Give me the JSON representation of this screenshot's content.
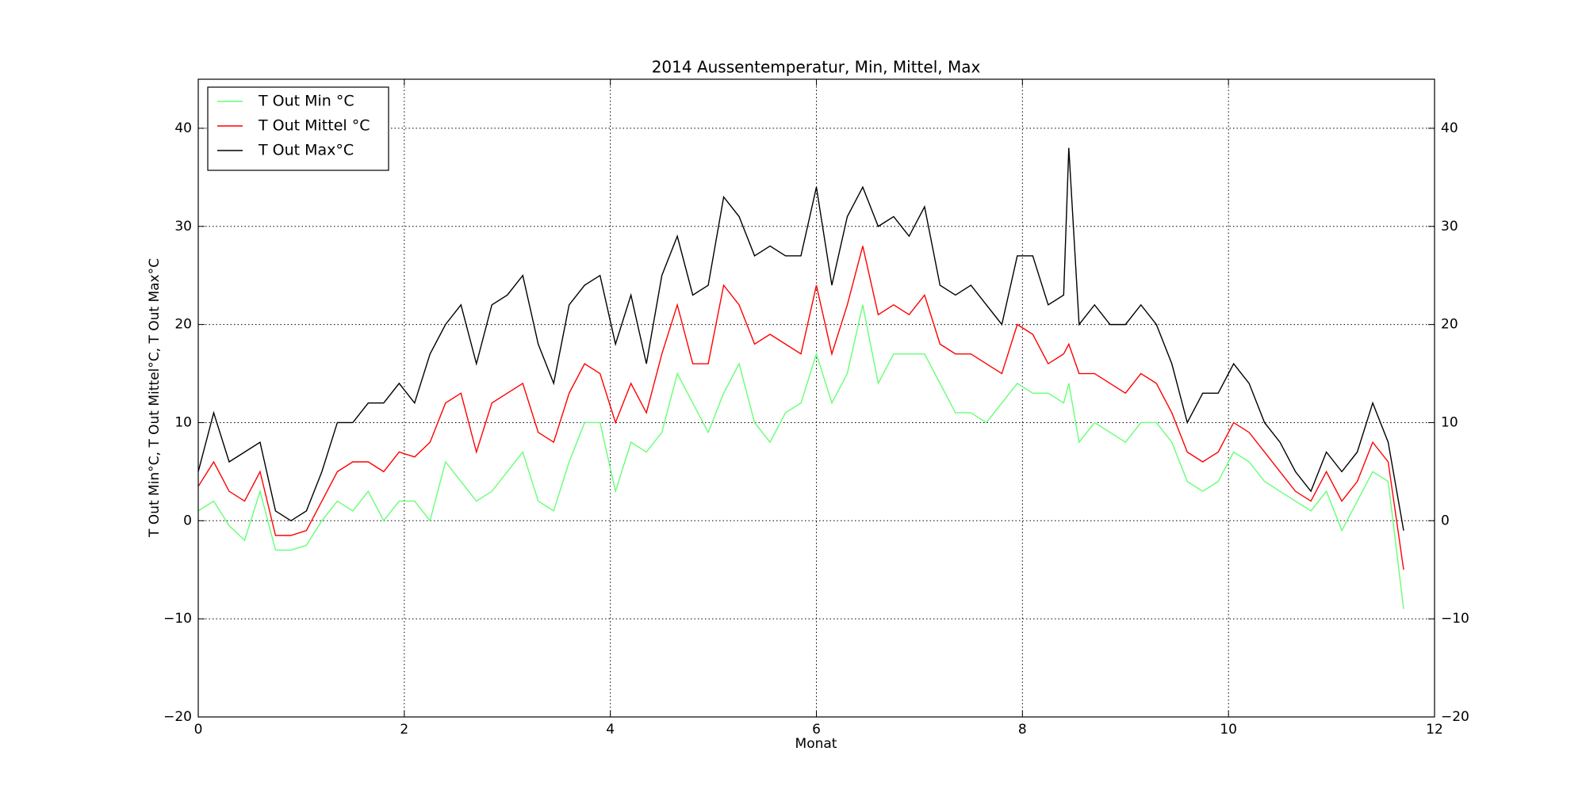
{
  "chart_data": {
    "type": "line",
    "title": "2014 Aussentemperatur, Min, Mittel, Max",
    "xlabel": "Monat",
    "ylabel": "T Out Min°C, T Out Mittel°C, T Out Max°C",
    "x": [
      0,
      0.15,
      0.3,
      0.45,
      0.6,
      0.75,
      0.9,
      1.05,
      1.2,
      1.35,
      1.5,
      1.65,
      1.8,
      1.95,
      2.1,
      2.25,
      2.4,
      2.55,
      2.7,
      2.85,
      3.0,
      3.15,
      3.3,
      3.45,
      3.6,
      3.75,
      3.9,
      4.05,
      4.2,
      4.35,
      4.5,
      4.65,
      4.8,
      4.95,
      5.1,
      5.25,
      5.4,
      5.55,
      5.7,
      5.85,
      6.0,
      6.15,
      6.3,
      6.45,
      6.6,
      6.75,
      6.9,
      7.05,
      7.2,
      7.35,
      7.5,
      7.65,
      7.8,
      7.95,
      8.1,
      8.25,
      8.4,
      8.45,
      8.55,
      8.7,
      8.85,
      9.0,
      9.15,
      9.3,
      9.45,
      9.6,
      9.75,
      9.9,
      10.05,
      10.2,
      10.35,
      10.5,
      10.65,
      10.8,
      10.95,
      11.1,
      11.25,
      11.4,
      11.55,
      11.7
    ],
    "series": [
      {
        "name": "T Out Min °C",
        "color": "#66ff77",
        "values": [
          1,
          2,
          -0.5,
          -2,
          3,
          -3,
          -3,
          -2.5,
          0,
          2,
          1,
          3,
          0,
          2,
          2,
          0,
          6,
          4,
          2,
          3,
          5,
          7,
          2,
          1,
          6,
          10,
          10,
          3,
          8,
          7,
          9,
          15,
          12,
          9,
          13,
          16,
          10,
          8,
          11,
          12,
          17,
          12,
          15,
          22,
          14,
          17,
          17,
          17,
          14,
          11,
          11,
          10,
          12,
          14,
          13,
          13,
          12,
          14,
          8,
          10,
          9,
          8,
          10,
          10,
          8,
          4,
          3,
          4,
          7,
          6,
          4,
          3,
          2,
          1,
          3,
          -1,
          2,
          5,
          4,
          -9
        ]
      },
      {
        "name": "T Out Mittel °C",
        "color": "#ff0000",
        "values": [
          3.5,
          6,
          3,
          2,
          5,
          -1.5,
          -1.5,
          -1,
          2,
          5,
          6,
          6,
          5,
          7,
          6.5,
          8,
          12,
          13,
          7,
          12,
          13,
          14,
          9,
          8,
          13,
          16,
          15,
          10,
          14,
          11,
          17,
          22,
          16,
          16,
          24,
          22,
          18,
          19,
          18,
          17,
          24,
          17,
          22,
          28,
          21,
          22,
          21,
          23,
          18,
          17,
          17,
          16,
          15,
          20,
          19,
          16,
          17,
          18,
          15,
          15,
          14,
          13,
          15,
          14,
          11,
          7,
          6,
          7,
          10,
          9,
          7,
          5,
          3,
          2,
          5,
          2,
          4,
          8,
          6,
          -5
        ]
      },
      {
        "name": "T Out Max°C",
        "color": "#000000",
        "values": [
          5,
          11,
          6,
          7,
          8,
          1,
          0,
          1,
          5,
          10,
          10,
          12,
          12,
          14,
          12,
          17,
          20,
          22,
          16,
          22,
          23,
          25,
          18,
          14,
          22,
          24,
          25,
          18,
          23,
          16,
          25,
          29,
          23,
          24,
          33,
          31,
          27,
          28,
          27,
          27,
          34,
          24,
          31,
          34,
          30,
          31,
          29,
          32,
          24,
          23,
          24,
          22,
          20,
          27,
          27,
          22,
          23,
          38,
          20,
          22,
          20,
          20,
          22,
          20,
          16,
          10,
          13,
          13,
          16,
          14,
          10,
          8,
          5,
          3,
          7,
          5,
          7,
          12,
          8,
          -1
        ]
      }
    ],
    "xlim": [
      0,
      12
    ],
    "xticks": [
      0,
      2,
      4,
      6,
      8,
      10,
      12
    ],
    "ylim": [
      -20,
      45
    ],
    "yticks": [
      {
        "value": -20,
        "label": "−20"
      },
      {
        "value": -10,
        "label": "−10"
      },
      0,
      10,
      20,
      30,
      40
    ],
    "grid": true,
    "legend": "upper left"
  }
}
